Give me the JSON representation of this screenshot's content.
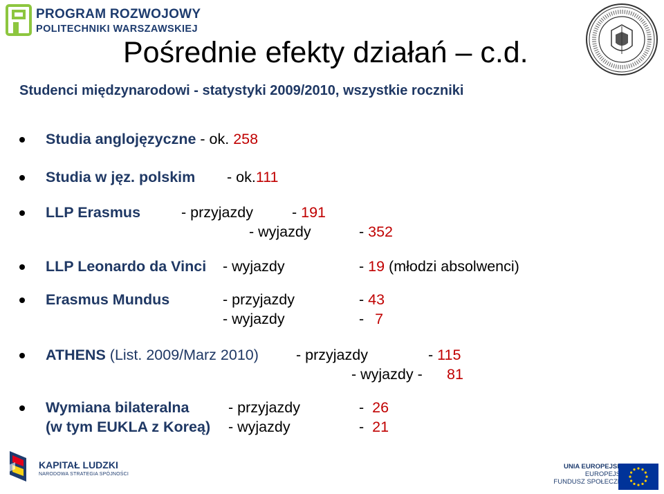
{
  "header": {
    "logo_line1": "PROGRAM ROZWOJOWY",
    "logo_line2": "POLITECHNIKI WARSZAWSKIEJ",
    "title": "Pośrednie efekty działań – c.d.",
    "subtitle": "Studenci międzynarodowi  - statystyki  2009/2010, wszystkie roczniki"
  },
  "items": {
    "anglo": {
      "name": "Studia anglojęzyczne",
      "sep": " - ok. ",
      "value": "258"
    },
    "polish": {
      "name": "Studia w jęz. polskim",
      "sep": "- ok.",
      "value": "111"
    },
    "llp_erasmus": {
      "name": "LLP Erasmus",
      "in_label": "- przyjazdy",
      "in_dash": "- ",
      "in_value": "191",
      "out_label": "- wyjazdy",
      "out_dash": "- ",
      "out_value": "352"
    },
    "leonardo": {
      "name": "LLP Leonardo da Vinci",
      "out_label": "- wyjazdy",
      "out_dash": "- ",
      "out_value": "19",
      "note": " (młodzi absolwenci)"
    },
    "mundus": {
      "name": "Erasmus Mundus",
      "in_label": "- przyjazdy",
      "in_dash": "- ",
      "in_value": "43",
      "out_label": "- wyjazdy",
      "out_dash": "- ",
      "out_value": "7"
    },
    "athens": {
      "name": "ATHENS",
      "period": " (List. 2009/Marz 2010)",
      "in_label": "- przyjazdy",
      "in_dash": "- ",
      "in_value": "115",
      "out_label": "- wyjazdy -",
      "out_value": "81"
    },
    "bilateral": {
      "name": "Wymiana bilateralna",
      "name2": "(w tym EUKLA z Koreą)",
      "in_label": "- przyjazdy",
      "in_dash": "- ",
      "in_value": "26",
      "out_label": "- wyjazdy",
      "out_dash": "- ",
      "out_value": "21"
    }
  },
  "footer": {
    "kl_title": "KAPITAŁ LUDZKI",
    "kl_sub": "NARODOWA STRATEGIA SPÓJNOŚCI",
    "eu_line1": "UNIA EUROPEJSKA",
    "eu_line2": "EUROPEJSKI",
    "eu_line3": "FUNDUSZ SPOŁECZNY"
  },
  "colors": {
    "accent": "#c00000",
    "navy": "#1f3864",
    "logo_green": "#8dc63f"
  }
}
